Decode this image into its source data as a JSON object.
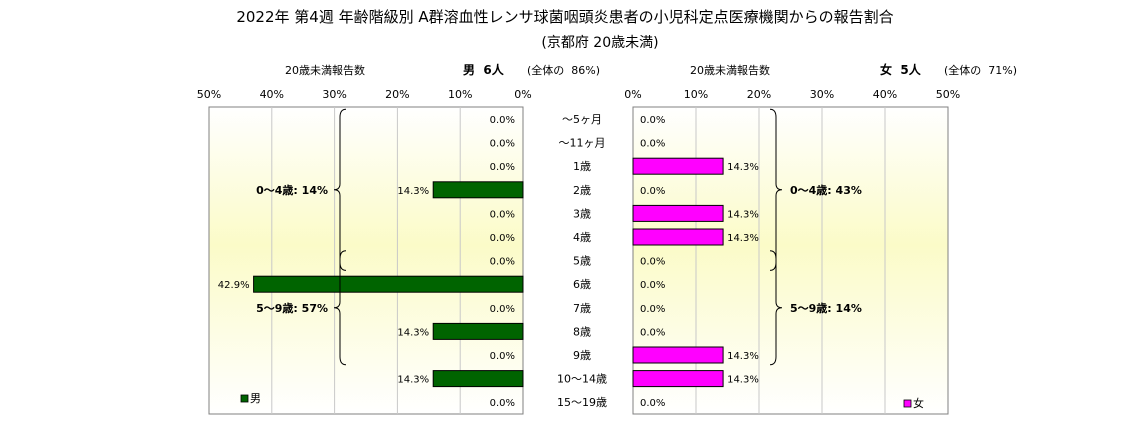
{
  "title": "2022年 第4週  年齢階級別 A群溶血性レンサ球菌咽頭炎患者の小児科定点医療機関からの報告割合",
  "subtitle": "(京都府 20歳未満)",
  "colors": {
    "male": "#006400",
    "female": "#ff00ff",
    "plot_bg_center": "#fbfbc8",
    "plot_bg_edge": "#ffffff"
  },
  "chart_data": [
    {
      "type": "bar",
      "orientation": "horizontal",
      "direction": "right-to-left",
      "header_label": "20歳未満報告数",
      "header_count": "男  6人",
      "header_share": "(全体の  86%)",
      "xlim": [
        0,
        50
      ],
      "tick_labels": [
        "0%",
        "10%",
        "20%",
        "30%",
        "40%",
        "50%"
      ],
      "categories": [
        "～5ヶ月",
        "～11ヶ月",
        "1歳",
        "2歳",
        "3歳",
        "4歳",
        "5歳",
        "6歳",
        "7歳",
        "8歳",
        "9歳",
        "10～14歳",
        "15～19歳"
      ],
      "series": [
        {
          "name": "男",
          "values": [
            0,
            0,
            0,
            14.3,
            0,
            0,
            0,
            42.9,
            0,
            14.3,
            0,
            14.3,
            0
          ],
          "labels": [
            "0.0%",
            "0.0%",
            "0.0%",
            "14.3%",
            "0.0%",
            "0.0%",
            "0.0%",
            "42.9%",
            "0.0%",
            "14.3%",
            "0.0%",
            "14.3%",
            "0.0%"
          ]
        }
      ],
      "group_annotations": [
        {
          "label": "0～4歳: 14%",
          "from": 0,
          "to": 6
        },
        {
          "label": "5～9歳: 57%",
          "from": 6,
          "to": 10
        }
      ],
      "legend": {
        "label": "男",
        "position": "bottom-left"
      }
    },
    {
      "type": "bar",
      "orientation": "horizontal",
      "direction": "left-to-right",
      "header_label": "20歳未満報告数",
      "header_count": "女  5人",
      "header_share": "(全体の  71%)",
      "xlim": [
        0,
        50
      ],
      "tick_labels": [
        "0%",
        "10%",
        "20%",
        "30%",
        "40%",
        "50%"
      ],
      "categories": [
        "～5ヶ月",
        "～11ヶ月",
        "1歳",
        "2歳",
        "3歳",
        "4歳",
        "5歳",
        "6歳",
        "7歳",
        "8歳",
        "9歳",
        "10～14歳",
        "15～19歳"
      ],
      "series": [
        {
          "name": "女",
          "values": [
            0,
            0,
            14.3,
            0,
            14.3,
            14.3,
            0,
            0,
            0,
            0,
            14.3,
            14.3,
            0
          ],
          "labels": [
            "0.0%",
            "0.0%",
            "14.3%",
            "0.0%",
            "14.3%",
            "14.3%",
            "0.0%",
            "0.0%",
            "0.0%",
            "0.0%",
            "14.3%",
            "14.3%",
            "0.0%"
          ]
        }
      ],
      "group_annotations": [
        {
          "label": "0～4歳: 43%",
          "from": 0,
          "to": 6
        },
        {
          "label": "5～9歳: 14%",
          "from": 6,
          "to": 10
        }
      ],
      "legend": {
        "label": "女",
        "position": "bottom-right"
      }
    }
  ]
}
